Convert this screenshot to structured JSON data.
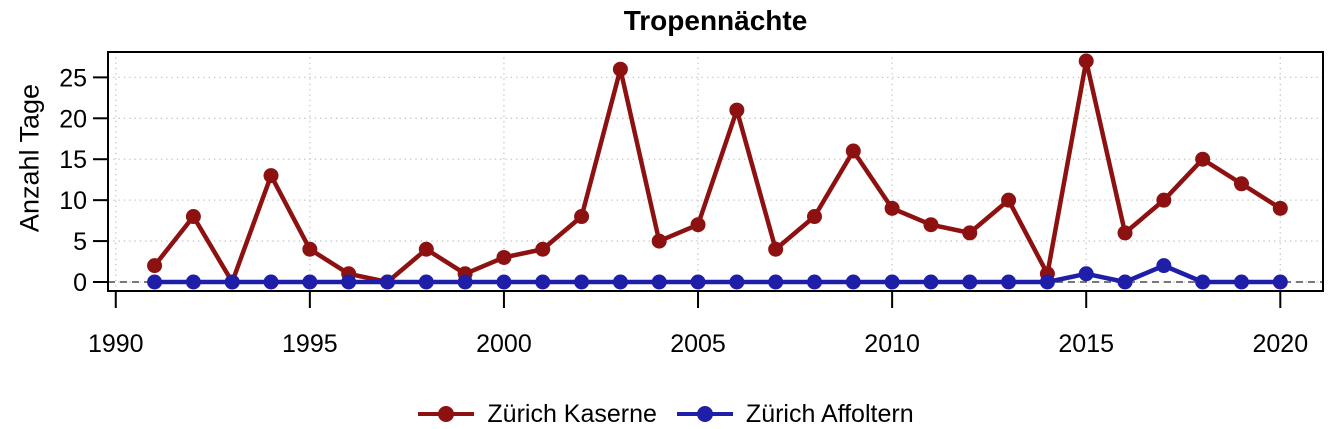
{
  "figure": {
    "background": "#ffffff"
  },
  "chart_data": {
    "type": "line",
    "title": "Tropennächte",
    "xlabel": "",
    "ylabel": "Anzahl Tage",
    "x": [
      1991,
      1992,
      1993,
      1994,
      1995,
      1996,
      1997,
      1998,
      1999,
      2000,
      2001,
      2002,
      2003,
      2004,
      2005,
      2006,
      2007,
      2008,
      2009,
      2010,
      2011,
      2012,
      2013,
      2014,
      2015,
      2016,
      2017,
      2018,
      2019,
      2020
    ],
    "series": [
      {
        "name": "Zürich Kaserne",
        "color": "#8e1111",
        "values": [
          2,
          8,
          0,
          13,
          4,
          1,
          0,
          4,
          1,
          3,
          4,
          8,
          26,
          5,
          7,
          21,
          4,
          8,
          16,
          9,
          7,
          6,
          10,
          1,
          27,
          6,
          10,
          15,
          12,
          9
        ]
      },
      {
        "name": "Zürich Affoltern",
        "color": "#1e1ea8",
        "values": [
          0,
          0,
          0,
          0,
          0,
          0,
          0,
          0,
          0,
          0,
          0,
          0,
          0,
          0,
          0,
          0,
          0,
          0,
          0,
          0,
          0,
          0,
          0,
          0,
          1,
          0,
          2,
          0,
          0,
          0
        ]
      }
    ],
    "xticks": [
      1990,
      1995,
      2000,
      2005,
      2010,
      2015,
      2020
    ],
    "yticks": [
      0,
      5,
      10,
      15,
      20,
      25
    ],
    "xlim": [
      1989.8,
      2021.1
    ],
    "ylim": [
      -1.1,
      28.1
    ],
    "grid": {
      "show": true,
      "style": "dotted",
      "color": "#c4c4c4"
    },
    "zero_line": {
      "show": true,
      "style": "dashed",
      "color": "#4d4d4d",
      "y": 0
    },
    "legend_position": "bottom",
    "axis_color": "#000000"
  }
}
